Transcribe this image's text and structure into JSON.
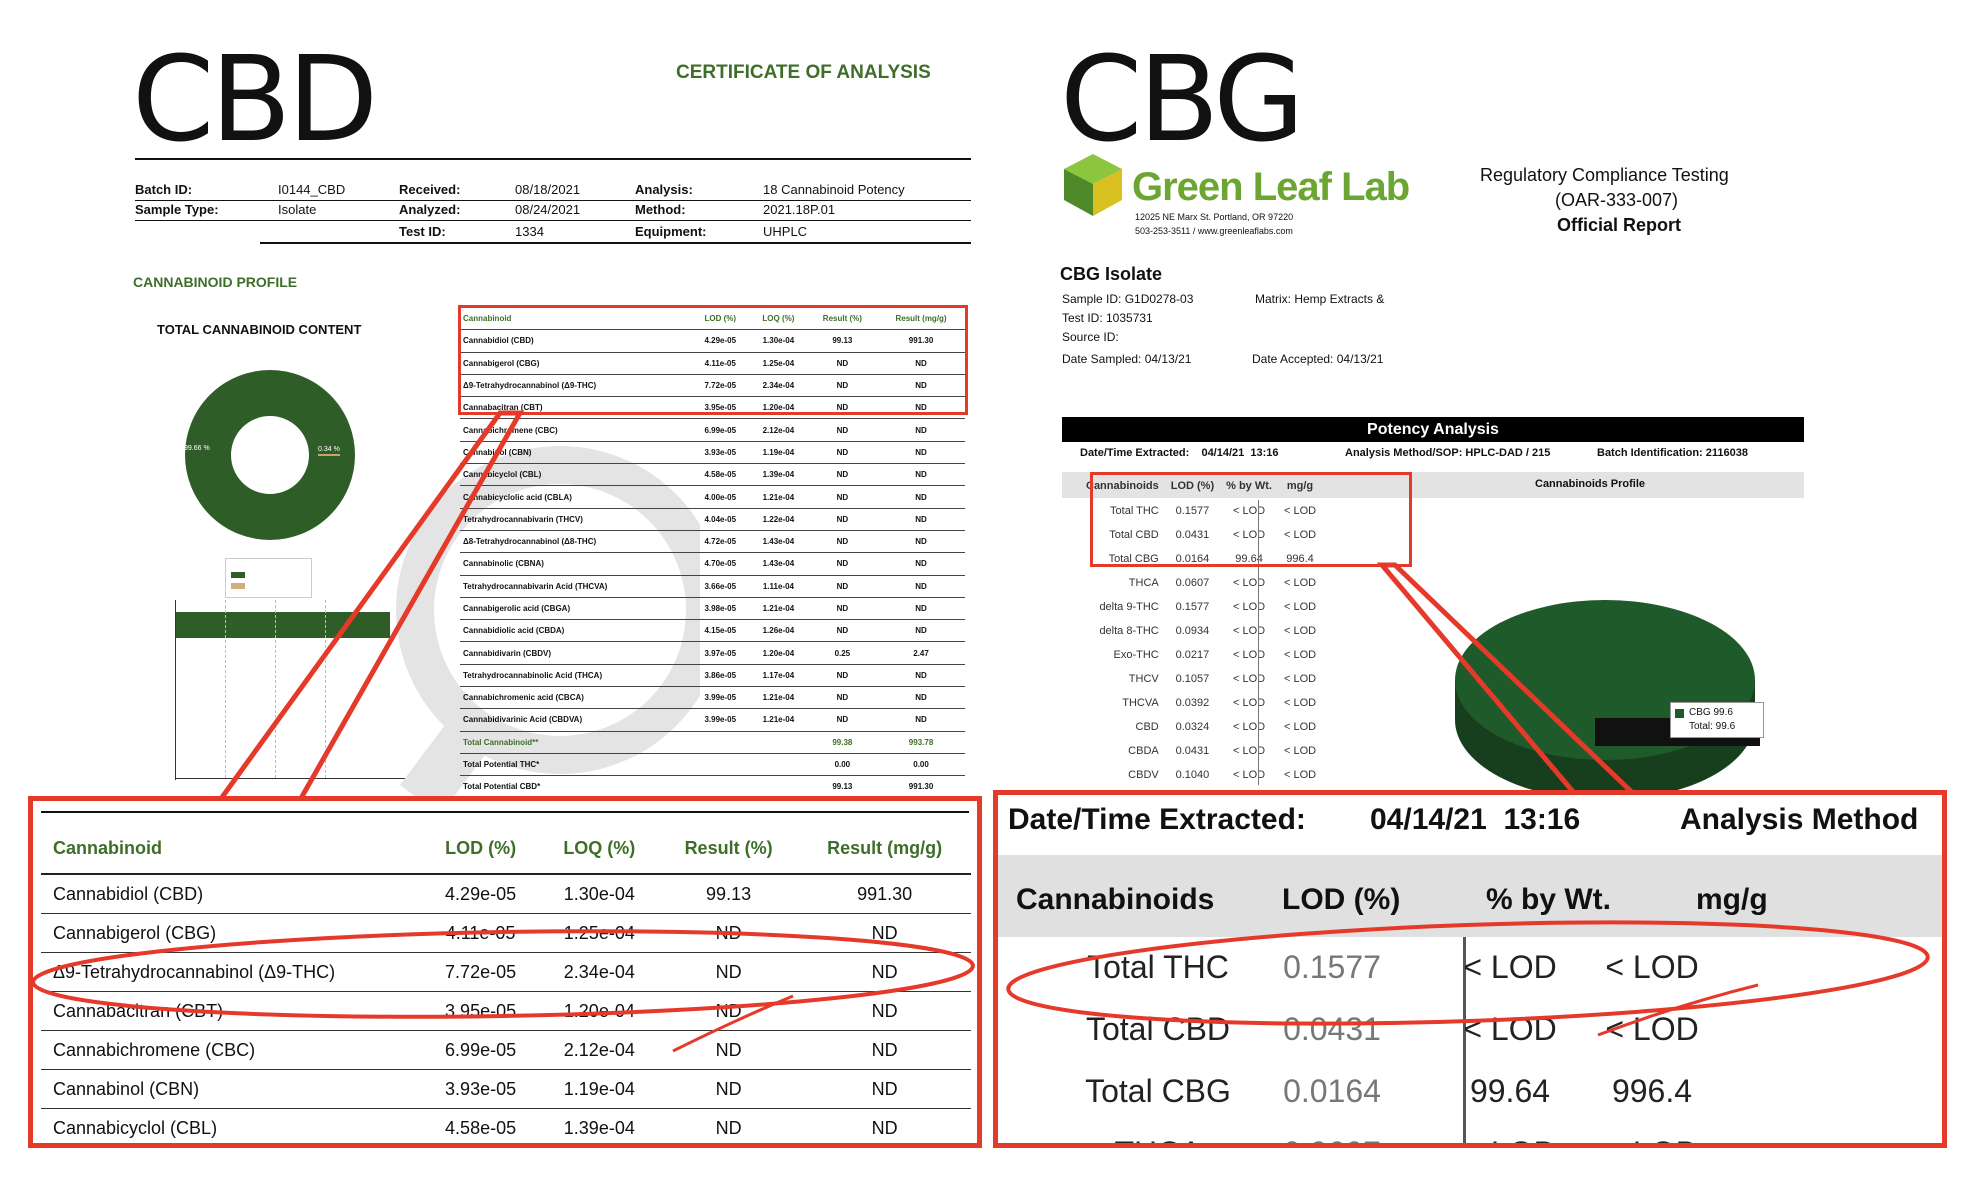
{
  "left": {
    "big_title": "CBD",
    "coa_title": "CERTIFICATE OF ANALYSIS",
    "info": {
      "batch_label": "Batch ID:",
      "batch_value": "I0144_CBD",
      "received_label": "Received:",
      "received_value": "08/18/2021",
      "analysis_label": "Analysis:",
      "analysis_value": "18 Cannabinoid Potency",
      "sample_type_label": "Sample Type:",
      "sample_type_value": "Isolate",
      "analyzed_label": "Analyzed:",
      "analyzed_value": "08/24/2021",
      "method_label": "Method:",
      "method_value": "2021.18P.01",
      "test_id_label": "Test ID:",
      "test_id_value": "1334",
      "equipment_label": "Equipment:",
      "equipment_value": "UHPLC"
    },
    "profile_heading": "CANNABINOID PROFILE",
    "total_content_heading": "TOTAL CANNABINOID CONTENT",
    "table_headers": [
      "Cannabinoid",
      "LOD (%)",
      "LOQ (%)",
      "Result (%)",
      "Result (mg/g)"
    ],
    "table_rows": [
      [
        "Cannabidiol (CBD)",
        "4.29e-05",
        "1.30e-04",
        "99.13",
        "991.30"
      ],
      [
        "Cannabigerol (CBG)",
        "4.11e-05",
        "1.25e-04",
        "ND",
        "ND"
      ],
      [
        "Δ9-Tetrahydrocannabinol (Δ9-THC)",
        "7.72e-05",
        "2.34e-04",
        "ND",
        "ND"
      ],
      [
        "Cannabacitran (CBT)",
        "3.95e-05",
        "1.20e-04",
        "ND",
        "ND"
      ],
      [
        "Cannabichromene (CBC)",
        "6.99e-05",
        "2.12e-04",
        "ND",
        "ND"
      ],
      [
        "Cannabinol (CBN)",
        "3.93e-05",
        "1.19e-04",
        "ND",
        "ND"
      ],
      [
        "Cannabicyclol (CBL)",
        "4.58e-05",
        "1.39e-04",
        "ND",
        "ND"
      ],
      [
        "Cannabicyclolic acid (CBLA)",
        "4.00e-05",
        "1.21e-04",
        "ND",
        "ND"
      ],
      [
        "Tetrahydrocannabivarin (THCV)",
        "4.04e-05",
        "1.22e-04",
        "ND",
        "ND"
      ],
      [
        "Δ8-Tetrahydrocannabinol (Δ8-THC)",
        "4.72e-05",
        "1.43e-04",
        "ND",
        "ND"
      ],
      [
        "Cannabinolic (CBNA)",
        "4.70e-05",
        "1.43e-04",
        "ND",
        "ND"
      ],
      [
        "Tetrahydrocannabivarin Acid (THCVA)",
        "3.66e-05",
        "1.11e-04",
        "ND",
        "ND"
      ],
      [
        "Cannabigerolic acid (CBGA)",
        "3.98e-05",
        "1.21e-04",
        "ND",
        "ND"
      ],
      [
        "Cannabidiolic acid (CBDA)",
        "4.15e-05",
        "1.26e-04",
        "ND",
        "ND"
      ],
      [
        "Cannabidivarin (CBDV)",
        "3.97e-05",
        "1.20e-04",
        "0.25",
        "2.47"
      ],
      [
        "Tetrahydrocannabinolic Acid (THCA)",
        "3.86e-05",
        "1.17e-04",
        "ND",
        "ND"
      ],
      [
        "Cannabichromenic acid (CBCA)",
        "3.99e-05",
        "1.21e-04",
        "ND",
        "ND"
      ],
      [
        "Cannabidivarinic Acid (CBDVA)",
        "3.99e-05",
        "1.21e-04",
        "ND",
        "ND"
      ]
    ],
    "total_row": [
      "Total Cannabinoid**",
      "99.38",
      "993.78"
    ],
    "total_thc_row": [
      "Total Potential THC*",
      "0.00",
      "0.00"
    ],
    "total_cbd_row": [
      "Total Potential CBD*",
      "99.13",
      "991.30"
    ],
    "donut_left_label": "99.66 %",
    "donut_right_label": "0.34 %",
    "zoom_rows_count": 7
  },
  "right": {
    "big_title": "CBG",
    "lab_name": "Green Leaf Lab",
    "lab_address": "12025 NE Marx St. Portland, OR 97220",
    "lab_contact": "503-253-3511 / www.greenleaflabs.com",
    "compliance_title_1": "Regulatory Compliance Testing",
    "compliance_title_2": "(OAR-333-007)",
    "compliance_title_3": "Official Report",
    "sample_name": "CBG Isolate",
    "sample_id": "Sample ID: G1D0278-03",
    "matrix": "Matrix: Hemp Extracts &",
    "test_id": "Test ID: 1035731",
    "source_id": "Source ID:",
    "date_sampled": "Date Sampled: 04/13/21",
    "date_accepted": "Date Accepted: 04/13/21",
    "potency_heading": "Potency Analysis",
    "extracted_line": "Date/Time Extracted:    04/14/21  13:16",
    "method_line": "Analysis Method/SOP: HPLC-DAD / 215",
    "batch_line": "Batch Identification: 2116038",
    "headers": [
      "Cannabinoids",
      "LOD (%)",
      "% by Wt.",
      "mg/g"
    ],
    "profile_heading": "Cannabinoids Profile",
    "rows": [
      [
        "Total THC",
        "0.1577",
        "< LOD",
        "< LOD"
      ],
      [
        "Total CBD",
        "0.0431",
        "< LOD",
        "< LOD"
      ],
      [
        "Total CBG",
        "0.0164",
        "99.64",
        "996.4"
      ],
      [
        "THCA",
        "0.0607",
        "< LOD",
        "< LOD"
      ],
      [
        "delta 9-THC",
        "0.1577",
        "< LOD",
        "< LOD"
      ],
      [
        "delta 8-THC",
        "0.0934",
        "< LOD",
        "< LOD"
      ],
      [
        "Exo-THC",
        "0.0217",
        "< LOD",
        "< LOD"
      ],
      [
        "THCV",
        "0.1057",
        "< LOD",
        "< LOD"
      ],
      [
        "THCVA",
        "0.0392",
        "< LOD",
        "< LOD"
      ],
      [
        "CBD",
        "0.0324",
        "< LOD",
        "< LOD"
      ],
      [
        "CBDA",
        "0.0431",
        "< LOD",
        "< LOD"
      ],
      [
        "CBDV",
        "0.1040",
        "< LOD",
        "< LOD"
      ]
    ],
    "legend_cbg": "CBG  99.6",
    "legend_total": "Total:  99.6",
    "zoom_extracted_label": "Date/Time Extracted:",
    "zoom_extracted_value": "04/14/21  13:16",
    "zoom_method_label": "Analysis Method"
  },
  "colors": {
    "accent_red": "#e5392a",
    "dark_green": "#2f5d27",
    "cbg_green": "#1f5a2b",
    "logo_green": "#6aa631"
  }
}
